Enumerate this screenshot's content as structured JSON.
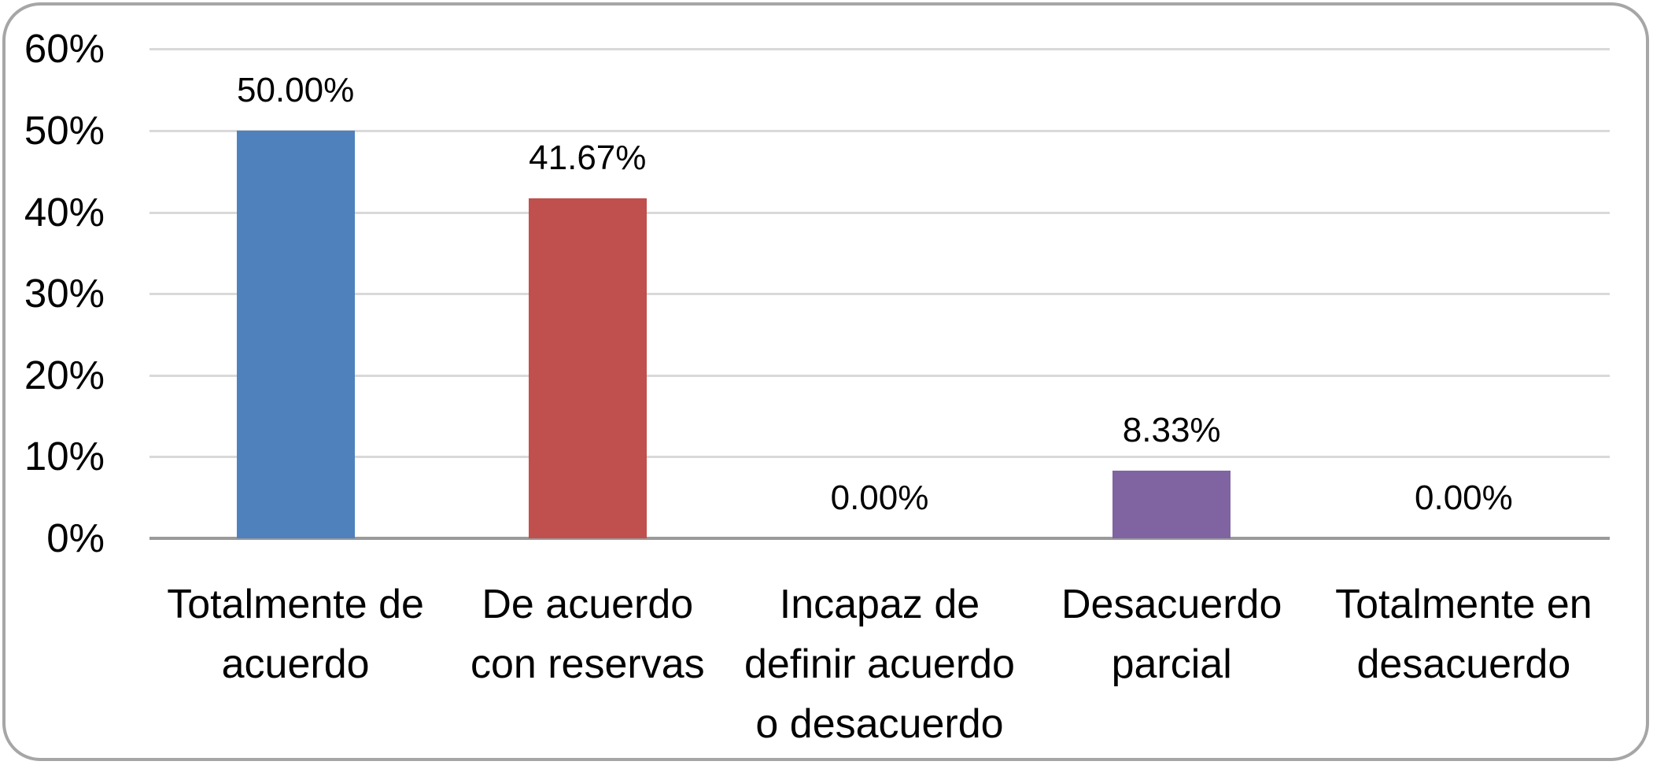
{
  "chart_data": {
    "type": "bar",
    "title": "",
    "xlabel": "",
    "ylabel": "",
    "categories": [
      "Totalmente de acuerdo",
      "De acuerdo con reservas",
      "Incapaz de definir acuerdo o desacuerdo",
      "Desacuerdo parcial",
      "Totalmente en desacuerdo"
    ],
    "category_lines": [
      [
        "Totalmente de",
        "acuerdo"
      ],
      [
        "De acuerdo",
        "con reservas"
      ],
      [
        "Incapaz de",
        "definir acuerdo",
        "o desacuerdo"
      ],
      [
        "Desacuerdo",
        "parcial"
      ],
      [
        "Totalmente en",
        "desacuerdo"
      ]
    ],
    "values": [
      50.0,
      41.67,
      0.0,
      8.33,
      0.0
    ],
    "data_labels": [
      "50.00%",
      "41.67%",
      "0.00%",
      "8.33%",
      "0.00%"
    ],
    "bar_colors": [
      "#4F81BD",
      "#C0504D",
      null,
      "#8064A2",
      null
    ],
    "y_ticks": [
      "0%",
      "10%",
      "20%",
      "30%",
      "40%",
      "50%",
      "60%"
    ],
    "y_tick_values": [
      0,
      10,
      20,
      30,
      40,
      50,
      60
    ],
    "ylim": [
      0,
      60
    ],
    "grid": true,
    "legend": "none",
    "colors": {
      "gridline": "#D9D9D9",
      "axis_line": "#9A9A9A",
      "frame_border": "#A6A6A6",
      "text": "#000000",
      "background": "#FFFFFF"
    }
  }
}
